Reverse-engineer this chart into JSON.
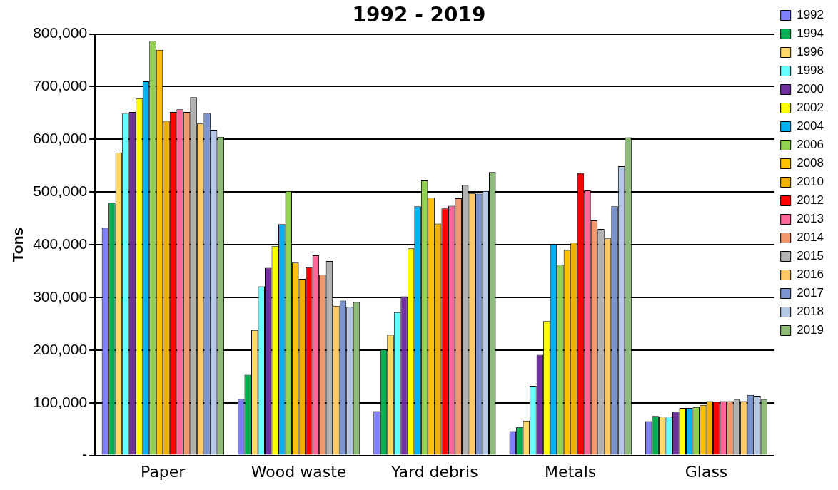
{
  "chart_data": {
    "type": "bar",
    "title": "1992 - 2019",
    "ylabel": "Tons",
    "categories": [
      "Paper",
      "Wood waste",
      "Yard debris",
      "Metals",
      "Glass"
    ],
    "series": [
      {
        "name": "1992",
        "color": "#8080ff",
        "values": [
          432000,
          107000,
          84000,
          46000,
          65000
        ]
      },
      {
        "name": "1994",
        "color": "#00b050",
        "values": [
          480000,
          153000,
          201000,
          54000,
          75000
        ]
      },
      {
        "name": "1996",
        "color": "#ffd966",
        "values": [
          575000,
          238000,
          229000,
          66000,
          74000
        ]
      },
      {
        "name": "1998",
        "color": "#66ffff",
        "values": [
          650000,
          321000,
          272000,
          132000,
          74000
        ]
      },
      {
        "name": "2000",
        "color": "#7030a0",
        "values": [
          652000,
          356000,
          302000,
          191000,
          83000
        ]
      },
      {
        "name": "2002",
        "color": "#ffff00",
        "values": [
          678000,
          397000,
          393000,
          255000,
          90000
        ]
      },
      {
        "name": "2004",
        "color": "#00b0f0",
        "values": [
          710000,
          439000,
          473000,
          401000,
          90000
        ]
      },
      {
        "name": "2006",
        "color": "#92d050",
        "values": [
          787000,
          502000,
          522000,
          362000,
          92000
        ]
      },
      {
        "name": "2008",
        "color": "#ffc000",
        "values": [
          770000,
          366000,
          489000,
          390000,
          96000
        ]
      },
      {
        "name": "2010",
        "color": "#f0b000",
        "values": [
          635000,
          335000,
          440000,
          404000,
          103000
        ]
      },
      {
        "name": "2012",
        "color": "#ff0000",
        "values": [
          652000,
          357000,
          469000,
          536000,
          102000
        ]
      },
      {
        "name": "2013",
        "color": "#ff6699",
        "values": [
          657000,
          380000,
          474000,
          503000,
          103000
        ]
      },
      {
        "name": "2014",
        "color": "#f0976c",
        "values": [
          652000,
          343000,
          488000,
          446000,
          103000
        ]
      },
      {
        "name": "2015",
        "color": "#b2b2b2",
        "values": [
          680000,
          369000,
          513000,
          430000,
          106000
        ]
      },
      {
        "name": "2016",
        "color": "#ffc966",
        "values": [
          630000,
          284000,
          498000,
          412000,
          103000
        ]
      },
      {
        "name": "2017",
        "color": "#7b93cf",
        "values": [
          650000,
          294000,
          497000,
          473000,
          115000
        ]
      },
      {
        "name": "2018",
        "color": "#b4c8e6",
        "values": [
          618000,
          282000,
          502000,
          549000,
          113000
        ]
      },
      {
        "name": "2019",
        "color": "#8fbb78",
        "values": [
          605000,
          291000,
          538000,
          604000,
          106000
        ]
      }
    ],
    "ylim": [
      0,
      800000
    ],
    "yticks": [
      {
        "value": 0,
        "label": "-"
      },
      {
        "value": 100000,
        "label": "100,000"
      },
      {
        "value": 200000,
        "label": "200,000"
      },
      {
        "value": 300000,
        "label": "300,000"
      },
      {
        "value": 400000,
        "label": "400,000"
      },
      {
        "value": 500000,
        "label": "500,000"
      },
      {
        "value": 600000,
        "label": "600,000"
      },
      {
        "value": 700000,
        "label": "700,000"
      },
      {
        "value": 800000,
        "label": "800,000"
      }
    ],
    "grid": "y",
    "legend": "top right"
  }
}
